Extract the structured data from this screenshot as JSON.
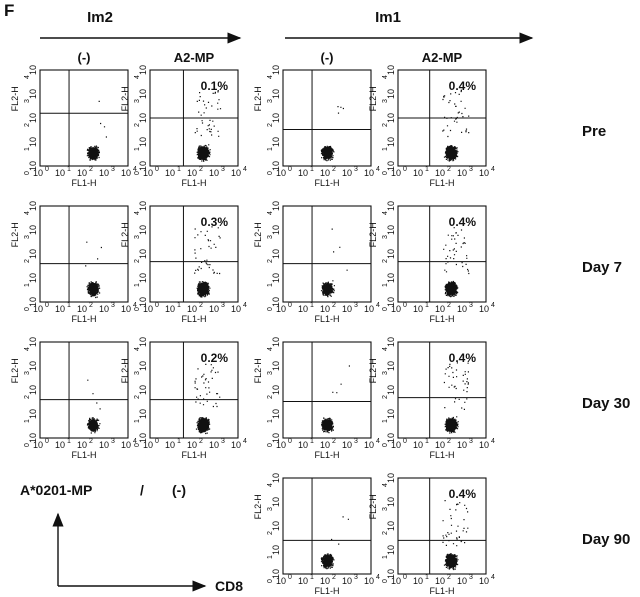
{
  "panel_label": "F",
  "groups": [
    {
      "label": "Im2"
    },
    {
      "label": "Im1"
    }
  ],
  "column_headers": [
    "(-)",
    "A2-MP",
    "(-)",
    "A2-MP"
  ],
  "row_labels": [
    "Pre",
    "Day 7",
    "Day 30",
    "Day 90"
  ],
  "x_axis_label": "FL1-H",
  "y_axis_label": "FL2-H",
  "axis_ticks": {
    "base": "10",
    "exponents": [
      "0",
      "1",
      "2",
      "3",
      "4"
    ]
  },
  "plots": [
    {
      "row": 0,
      "column": 0
    },
    {
      "row": 0,
      "column": 1,
      "percent": "0.1%"
    },
    {
      "row": 0,
      "column": 2
    },
    {
      "row": 0,
      "column": 3,
      "percent": "0.4%"
    },
    {
      "row": 1,
      "column": 0
    },
    {
      "row": 1,
      "column": 1,
      "percent": "0.3%"
    },
    {
      "row": 1,
      "column": 2
    },
    {
      "row": 1,
      "column": 3,
      "percent": "0.4%"
    },
    {
      "row": 2,
      "column": 0
    },
    {
      "row": 2,
      "column": 1,
      "percent": "0.2%"
    },
    {
      "row": 2,
      "column": 2
    },
    {
      "row": 2,
      "column": 3,
      "percent": "0.4%"
    },
    {
      "row": 3,
      "column": 2
    },
    {
      "row": 3,
      "column": 3,
      "percent": "0.4%"
    }
  ],
  "legend": {
    "y_label": "A*0201-MP",
    "separator": "/",
    "negative": "(-)",
    "x_label": "CD8"
  }
}
